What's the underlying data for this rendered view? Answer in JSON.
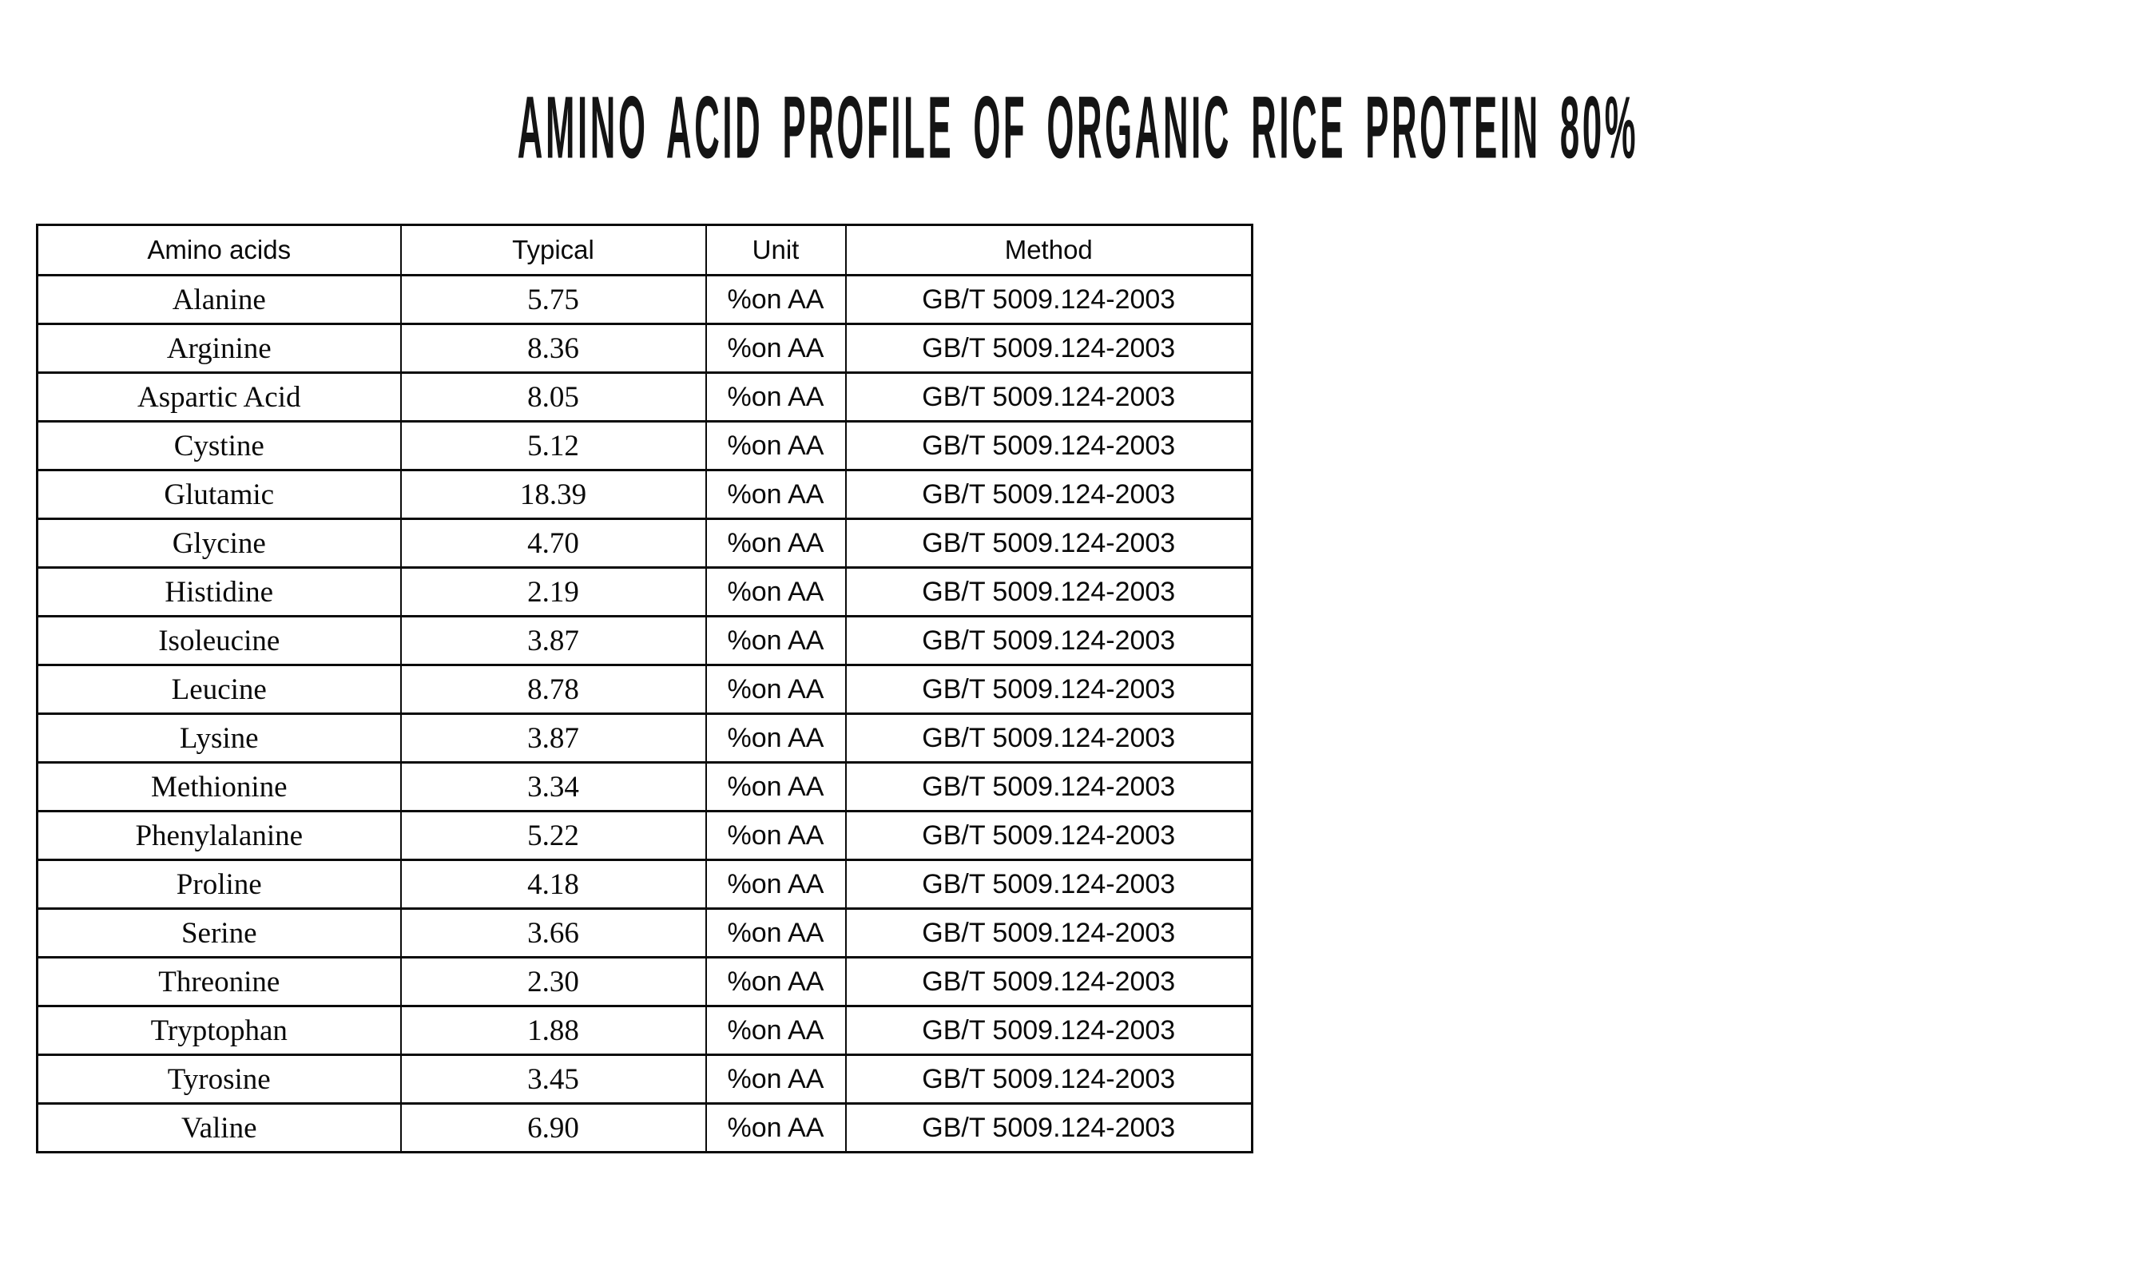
{
  "title": "AMINO ACID PROFILE OF ORGANIC RICE PROTEIN 80%",
  "table": {
    "headers": [
      "Amino acids",
      "Typical",
      "Unit",
      "Method"
    ],
    "rows": [
      {
        "amino_acid": "Alanine",
        "typical": "5.75",
        "unit": "%on AA",
        "method": "GB/T 5009.124-2003"
      },
      {
        "amino_acid": "Arginine",
        "typical": "8.36",
        "unit": "%on AA",
        "method": "GB/T 5009.124-2003"
      },
      {
        "amino_acid": "Aspartic Acid",
        "typical": "8.05",
        "unit": "%on AA",
        "method": "GB/T 5009.124-2003"
      },
      {
        "amino_acid": "Cystine",
        "typical": "5.12",
        "unit": "%on AA",
        "method": "GB/T 5009.124-2003"
      },
      {
        "amino_acid": "Glutamic",
        "typical": "18.39",
        "unit": "%on AA",
        "method": "GB/T 5009.124-2003"
      },
      {
        "amino_acid": "Glycine",
        "typical": "4.70",
        "unit": "%on AA",
        "method": "GB/T 5009.124-2003"
      },
      {
        "amino_acid": "Histidine",
        "typical": "2.19",
        "unit": "%on AA",
        "method": "GB/T 5009.124-2003"
      },
      {
        "amino_acid": "Isoleucine",
        "typical": "3.87",
        "unit": "%on AA",
        "method": "GB/T 5009.124-2003"
      },
      {
        "amino_acid": "Leucine",
        "typical": "8.78",
        "unit": "%on AA",
        "method": "GB/T 5009.124-2003"
      },
      {
        "amino_acid": "Lysine",
        "typical": "3.87",
        "unit": "%on AA",
        "method": "GB/T 5009.124-2003"
      },
      {
        "amino_acid": "Methionine",
        "typical": "3.34",
        "unit": "%on AA",
        "method": "GB/T 5009.124-2003"
      },
      {
        "amino_acid": "Phenylalanine",
        "typical": "5.22",
        "unit": "%on AA",
        "method": "GB/T 5009.124-2003"
      },
      {
        "amino_acid": "Proline",
        "typical": "4.18",
        "unit": "%on AA",
        "method": "GB/T 5009.124-2003"
      },
      {
        "amino_acid": "Serine",
        "typical": "3.66",
        "unit": "%on AA",
        "method": "GB/T 5009.124-2003"
      },
      {
        "amino_acid": "Threonine",
        "typical": "2.30",
        "unit": "%on AA",
        "method": "GB/T 5009.124-2003"
      },
      {
        "amino_acid": "Tryptophan",
        "typical": "1.88",
        "unit": "%on AA",
        "method": "GB/T 5009.124-2003"
      },
      {
        "amino_acid": "Tyrosine",
        "typical": "3.45",
        "unit": "%on AA",
        "method": "GB/T 5009.124-2003"
      },
      {
        "amino_acid": "Valine",
        "typical": "6.90",
        "unit": "%on AA",
        "method": "GB/T 5009.124-2003"
      }
    ],
    "colors": {
      "text": "#0a0a0a",
      "border": "#0a0a0a",
      "background": "#ffffff"
    }
  }
}
